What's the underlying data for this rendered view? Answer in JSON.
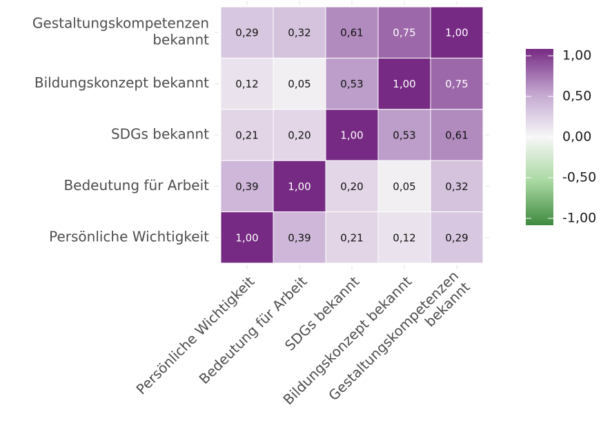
{
  "chart_data": {
    "type": "heatmap",
    "x_categories": [
      [
        "Persönliche Wichtigkeit"
      ],
      [
        "Bedeutung für Arbeit"
      ],
      [
        "SDGs bekannt"
      ],
      [
        "Bildungskonzept bekannt"
      ],
      [
        "Gestaltungskompetenzen",
        "bekannt"
      ]
    ],
    "y_categories": [
      [
        "Gestaltungskompetenzen",
        "bekannt"
      ],
      [
        "Bildungskonzept bekannt"
      ],
      [
        "SDGs bekannt"
      ],
      [
        "Bedeutung für Arbeit"
      ],
      [
        "Persönliche Wichtigkeit"
      ]
    ],
    "values": [
      [
        0.29,
        0.32,
        0.61,
        0.75,
        1.0
      ],
      [
        0.12,
        0.05,
        0.53,
        1.0,
        0.75
      ],
      [
        0.21,
        0.2,
        1.0,
        0.53,
        0.61
      ],
      [
        0.39,
        1.0,
        0.2,
        0.05,
        0.32
      ],
      [
        1.0,
        0.39,
        0.21,
        0.12,
        0.29
      ]
    ],
    "value_labels": [
      [
        "0,29",
        "0,32",
        "0,61",
        "0,75",
        "1,00"
      ],
      [
        "0,12",
        "0,05",
        "0,53",
        "1,00",
        "0,75"
      ],
      [
        "0,21",
        "0,20",
        "1,00",
        "0,53",
        "0,61"
      ],
      [
        "0,39",
        "1,00",
        "0,20",
        "0,05",
        "0,32"
      ],
      [
        "1,00",
        "0,39",
        "0,21",
        "0,12",
        "0,29"
      ]
    ],
    "colorbar": {
      "lim": [
        -1,
        1
      ],
      "ticks": [
        {
          "value": 1,
          "label": "1,00"
        },
        {
          "value": 0.5,
          "label": "0,50"
        },
        {
          "value": 0,
          "label": "0,00"
        },
        {
          "value": -0.5,
          "label": "-0,50"
        },
        {
          "value": -1,
          "label": "-1,00"
        }
      ],
      "colors": [
        "#3f8a3f",
        "#a9d8a2",
        "#f7f7f7",
        "#c2a5cf",
        "#762a83"
      ]
    }
  }
}
